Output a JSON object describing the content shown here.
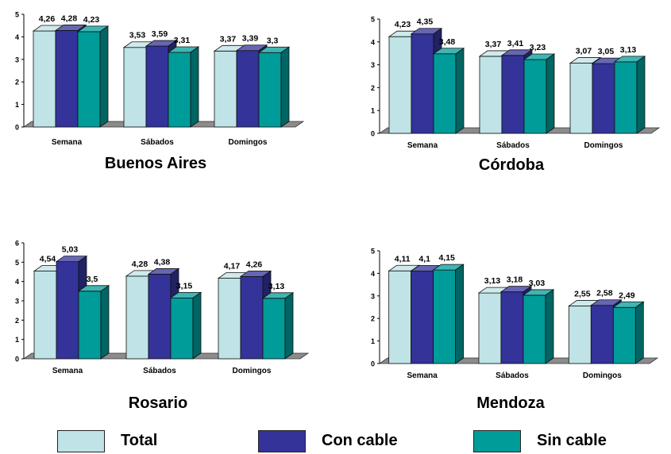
{
  "colors": {
    "total": "#bfe3e6",
    "con_cable": "#33339a",
    "sin_cable": "#009c99"
  },
  "legend": [
    {
      "key": "total",
      "label": "Total"
    },
    {
      "key": "con_cable",
      "label": "Con cable"
    },
    {
      "key": "sin_cable",
      "label": "Sin cable"
    }
  ],
  "chart_data": [
    {
      "type": "bar",
      "title": "Buenos Aires",
      "categories": [
        "Semana",
        "Sábados",
        "Domingos"
      ],
      "ylim": [
        0,
        5
      ],
      "yticks": [
        "0",
        "1",
        "2",
        "3",
        "4",
        "5"
      ],
      "series": [
        {
          "name": "Total",
          "values": [
            4.26,
            3.53,
            3.37
          ],
          "labels": [
            "4,26",
            "3,53",
            "3,37"
          ]
        },
        {
          "name": "Con cable",
          "values": [
            4.28,
            3.59,
            3.39
          ],
          "labels": [
            "4,28",
            "3,59",
            "3,39"
          ]
        },
        {
          "name": "Sin cable",
          "values": [
            4.23,
            3.31,
            3.3
          ],
          "labels": [
            "4,23",
            "3,31",
            "3,3"
          ]
        }
      ]
    },
    {
      "type": "bar",
      "title": "Córdoba",
      "categories": [
        "Semana",
        "Sábados",
        "Domingos"
      ],
      "ylim": [
        0,
        5
      ],
      "yticks": [
        "0",
        "1",
        "2",
        "3",
        "4",
        "5"
      ],
      "series": [
        {
          "name": "Total",
          "values": [
            4.23,
            3.37,
            3.07
          ],
          "labels": [
            "4,23",
            "3,37",
            "3,07"
          ]
        },
        {
          "name": "Con cable",
          "values": [
            4.35,
            3.41,
            3.05
          ],
          "labels": [
            "4,35",
            "3,41",
            "3,05"
          ]
        },
        {
          "name": "Sin cable",
          "values": [
            3.48,
            3.23,
            3.13
          ],
          "labels": [
            "3,48",
            "3,23",
            "3,13"
          ]
        }
      ]
    },
    {
      "type": "bar",
      "title": "Rosario",
      "categories": [
        "Semana",
        "Sábados",
        "Domingos"
      ],
      "ylim": [
        0,
        6
      ],
      "yticks": [
        "0",
        "1",
        "2",
        "3",
        "4",
        "5",
        "6"
      ],
      "series": [
        {
          "name": "Total",
          "values": [
            4.54,
            4.28,
            4.17
          ],
          "labels": [
            "4,54",
            "4,28",
            "4,17"
          ]
        },
        {
          "name": "Con cable",
          "values": [
            5.03,
            4.38,
            4.26
          ],
          "labels": [
            "5,03",
            "4,38",
            "4,26"
          ]
        },
        {
          "name": "Sin cable",
          "values": [
            3.5,
            3.15,
            3.13
          ],
          "labels": [
            "3,5",
            "3,15",
            "3,13"
          ]
        }
      ]
    },
    {
      "type": "bar",
      "title": "Mendoza",
      "categories": [
        "Semana",
        "Sábados",
        "Domingos"
      ],
      "ylim": [
        0,
        5
      ],
      "yticks": [
        "0",
        "1",
        "2",
        "3",
        "4",
        "5"
      ],
      "series": [
        {
          "name": "Total",
          "values": [
            4.11,
            3.13,
            2.55
          ],
          "labels": [
            "4,11",
            "3,13",
            "2,55"
          ]
        },
        {
          "name": "Con cable",
          "values": [
            4.1,
            3.18,
            2.58
          ],
          "labels": [
            "4,1",
            "3,18",
            "2,58"
          ]
        },
        {
          "name": "Sin cable",
          "values": [
            4.15,
            3.03,
            2.49
          ],
          "labels": [
            "4,15",
            "3,03",
            "2,49"
          ]
        }
      ]
    }
  ]
}
